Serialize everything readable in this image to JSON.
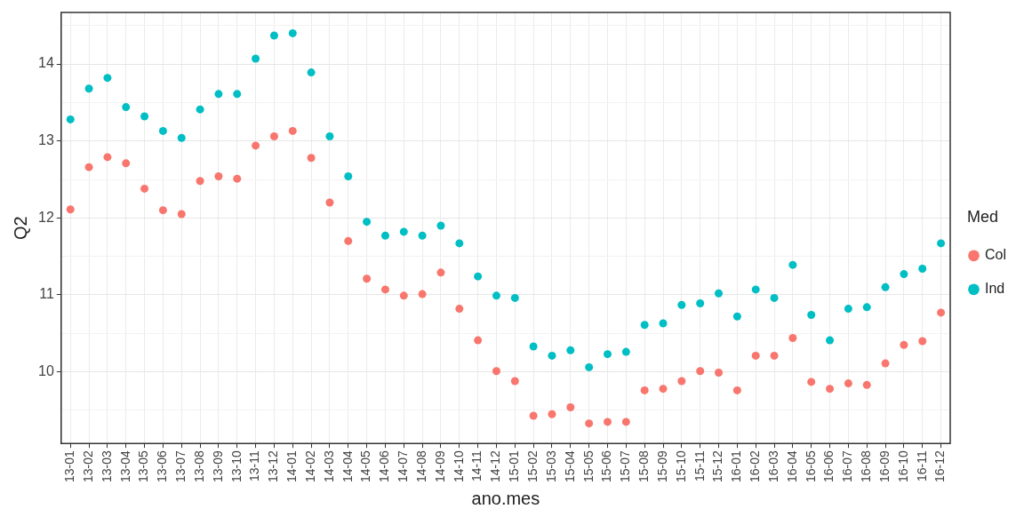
{
  "chart_data": {
    "type": "scatter",
    "xlabel": "ano.mes",
    "ylabel": "Q2",
    "legend_title": "Med",
    "categories": [
      "13-01",
      "13-02",
      "13-03",
      "13-04",
      "13-05",
      "13-06",
      "13-07",
      "13-08",
      "13-09",
      "13-10",
      "13-11",
      "13-12",
      "14-01",
      "14-02",
      "14-03",
      "14-04",
      "14-05",
      "14-06",
      "14-07",
      "14-08",
      "14-09",
      "14-10",
      "14-11",
      "14-12",
      "15-01",
      "15-02",
      "15-03",
      "15-04",
      "15-05",
      "15-06",
      "15-07",
      "15-08",
      "15-09",
      "15-10",
      "15-11",
      "15-12",
      "16-01",
      "16-02",
      "16-03",
      "16-04",
      "16-05",
      "16-06",
      "16-07",
      "16-08",
      "16-09",
      "16-10",
      "16-11",
      "16-12"
    ],
    "series": [
      {
        "name": "Col",
        "color": "#f8766d",
        "values": [
          12.11,
          12.66,
          12.79,
          12.71,
          12.38,
          12.1,
          12.05,
          12.48,
          12.54,
          12.51,
          12.94,
          13.06,
          13.13,
          12.78,
          12.2,
          11.7,
          11.21,
          11.07,
          10.99,
          11.01,
          11.29,
          10.82,
          10.41,
          10.01,
          9.88,
          9.43,
          9.45,
          9.54,
          9.33,
          9.35,
          9.35,
          9.76,
          9.78,
          9.88,
          10.01,
          9.99,
          9.76,
          10.21,
          10.21,
          10.44,
          9.87,
          9.78,
          9.85,
          9.83,
          10.11,
          10.35,
          10.4,
          10.77
        ]
      },
      {
        "name": "Ind",
        "color": "#00bfc4",
        "values": [
          13.28,
          13.68,
          13.82,
          13.44,
          13.32,
          13.13,
          13.04,
          13.41,
          13.61,
          13.61,
          14.07,
          14.37,
          14.4,
          13.89,
          13.06,
          12.54,
          11.95,
          11.77,
          11.82,
          11.77,
          11.9,
          11.67,
          11.24,
          10.99,
          10.96,
          10.33,
          10.21,
          10.28,
          10.06,
          10.23,
          10.26,
          10.61,
          10.63,
          10.87,
          10.89,
          11.02,
          10.72,
          11.07,
          10.96,
          11.39,
          10.74,
          10.41,
          10.82,
          10.84,
          11.1,
          11.27,
          11.34,
          11.67
        ]
      }
    ],
    "ylim": [
      9.07,
      14.67
    ],
    "yticks": [
      {
        "value": 9.5,
        "label": null
      },
      10,
      {
        "value": 10.5,
        "label": null
      },
      11,
      {
        "value": 11.5,
        "label": null
      },
      12,
      {
        "value": 12.5,
        "label": null
      },
      13,
      {
        "value": 13.5,
        "label": null
      },
      14,
      {
        "value": 14.5,
        "label": null
      }
    ],
    "grid": true,
    "legend": "right",
    "marker": "circle"
  }
}
